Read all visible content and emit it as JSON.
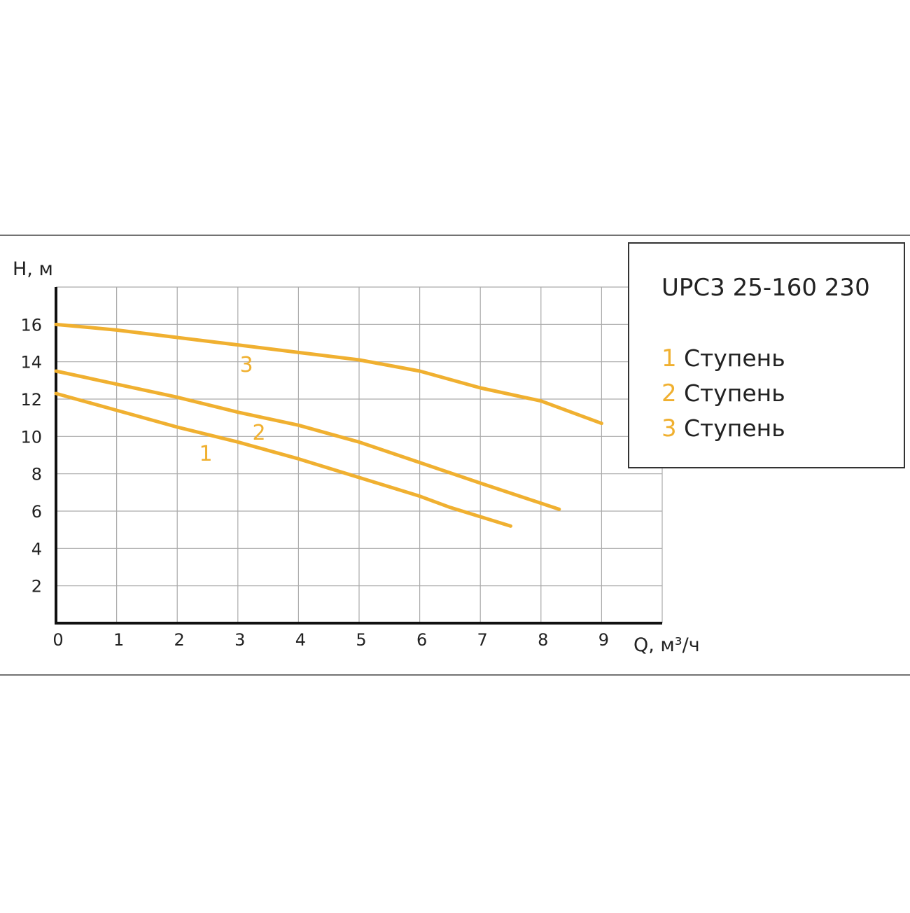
{
  "chart_data": {
    "type": "line",
    "title": "UPC3 25-160 230",
    "x_label": "Q, м³/ч",
    "y_label": "H, м",
    "xlim": [
      0,
      10
    ],
    "ylim": [
      0,
      18
    ],
    "xticks": [
      0,
      1,
      2,
      3,
      4,
      5,
      6,
      7,
      8,
      9
    ],
    "yticks": [
      2,
      4,
      6,
      8,
      10,
      12,
      14,
      16
    ],
    "grid": true,
    "series": [
      {
        "name": "Ступень",
        "label": "1",
        "color": "#f0b030",
        "x": [
          0,
          1,
          2,
          3,
          4,
          5,
          6,
          6.5,
          7.5
        ],
        "values": [
          12.3,
          11.4,
          10.5,
          9.7,
          8.8,
          7.8,
          6.8,
          6.2,
          5.2
        ]
      },
      {
        "name": "Ступень",
        "label": "2",
        "color": "#f0b030",
        "x": [
          0,
          1,
          2,
          3,
          4,
          5,
          6,
          7,
          8.3
        ],
        "values": [
          13.5,
          12.8,
          12.1,
          11.3,
          10.6,
          9.7,
          8.6,
          7.5,
          6.1
        ]
      },
      {
        "name": "Ступень",
        "label": "3",
        "color": "#f0b030",
        "x": [
          0,
          1,
          2,
          3,
          4,
          5,
          6,
          7,
          8,
          9
        ],
        "values": [
          16,
          15.7,
          15.3,
          14.9,
          14.5,
          14.1,
          13.5,
          12.6,
          11.9,
          10.7
        ]
      }
    ]
  }
}
